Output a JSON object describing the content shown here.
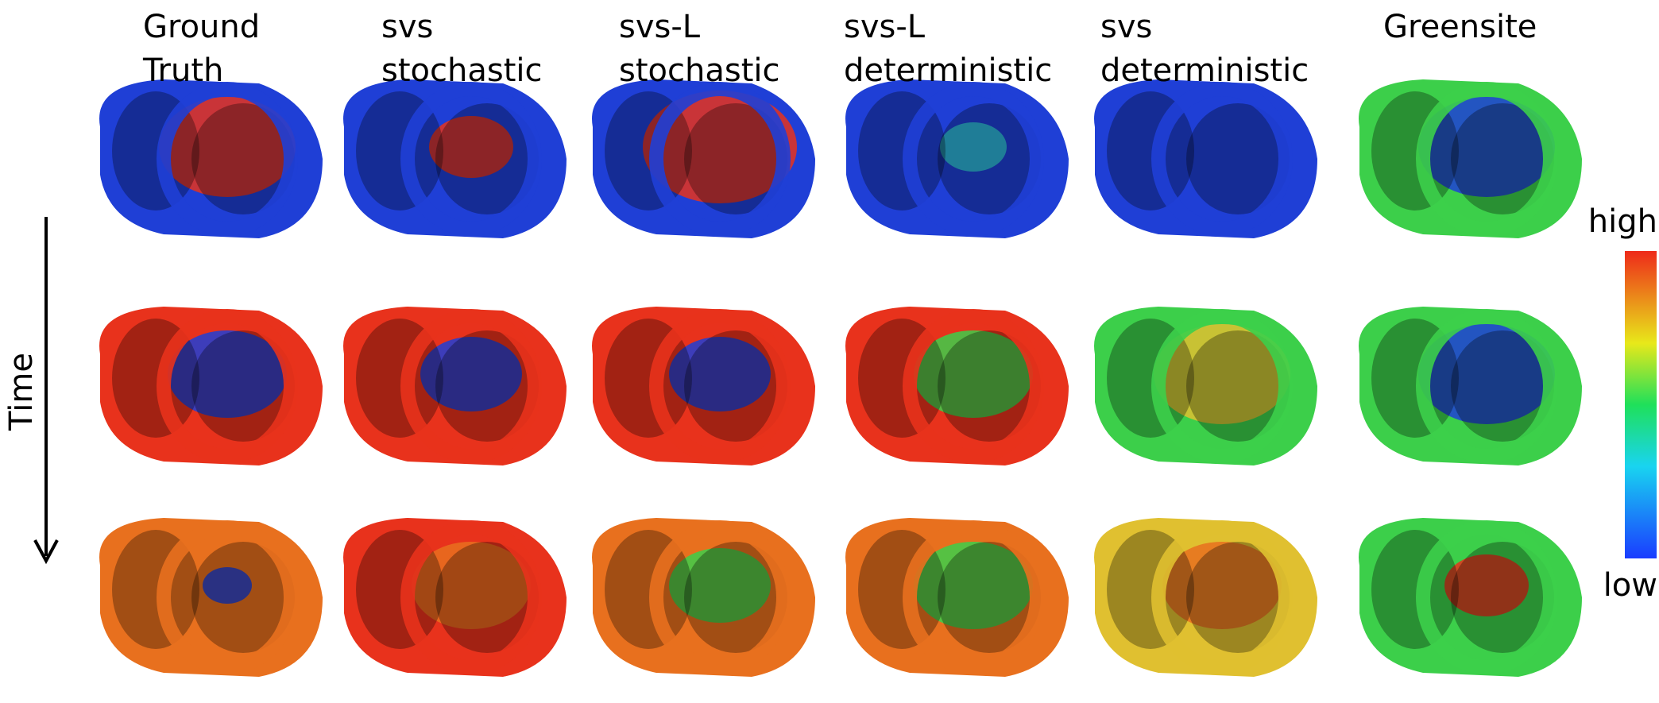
{
  "columns": [
    {
      "lines": [
        "Ground",
        "Truth"
      ]
    },
    {
      "lines": [
        "svs",
        "stochastic"
      ]
    },
    {
      "lines": [
        "svs-L",
        "stochastic"
      ]
    },
    {
      "lines": [
        "svs-L",
        "deterministic"
      ]
    },
    {
      "lines": [
        "svs",
        "deterministic"
      ]
    },
    {
      "lines": [
        "Greensite"
      ]
    }
  ],
  "axis_label": "Time",
  "colorbar": {
    "high": "high",
    "low": "low"
  }
}
